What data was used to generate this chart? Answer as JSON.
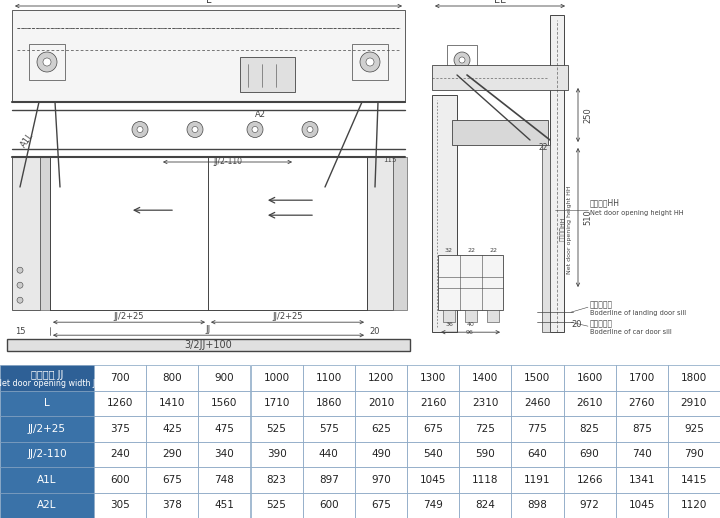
{
  "table_header_cn": "净开门宽 JJ",
  "table_header_en": "Net door opening width JJ",
  "col_headers": [
    "700",
    "800",
    "900",
    "1000",
    "1100",
    "1200",
    "1300",
    "1400",
    "1500",
    "1600",
    "1700",
    "1800"
  ],
  "rows": [
    {
      "label": "L",
      "values": [
        "1260",
        "1410",
        "1560",
        "1710",
        "1860",
        "2010",
        "2160",
        "2310",
        "2460",
        "2610",
        "2760",
        "2910"
      ]
    },
    {
      "label": "JJ/2+25",
      "values": [
        "375",
        "425",
        "475",
        "525",
        "575",
        "625",
        "675",
        "725",
        "775",
        "825",
        "875",
        "925"
      ]
    },
    {
      "label": "JJ/2-110",
      "values": [
        "240",
        "290",
        "340",
        "390",
        "440",
        "490",
        "540",
        "590",
        "640",
        "690",
        "740",
        "790"
      ]
    },
    {
      "label": "A1L",
      "values": [
        "600",
        "675",
        "748",
        "823",
        "897",
        "970",
        "1045",
        "1118",
        "1191",
        "1266",
        "1341",
        "1415"
      ]
    },
    {
      "label": "A2L",
      "values": [
        "305",
        "378",
        "451",
        "525",
        "600",
        "675",
        "749",
        "824",
        "898",
        "972",
        "1045",
        "1120"
      ]
    }
  ],
  "header_bg": "#2e6096",
  "row_label_bg": "#3a72a8",
  "row_label_fg": "#ffffff",
  "header_fg": "#ffffff",
  "data_fg": "#222222",
  "data_bg": "#ffffff",
  "border_color": "#7f9fbf",
  "figure_bg": "#ffffff",
  "lc": "#444444",
  "lw": 0.6
}
